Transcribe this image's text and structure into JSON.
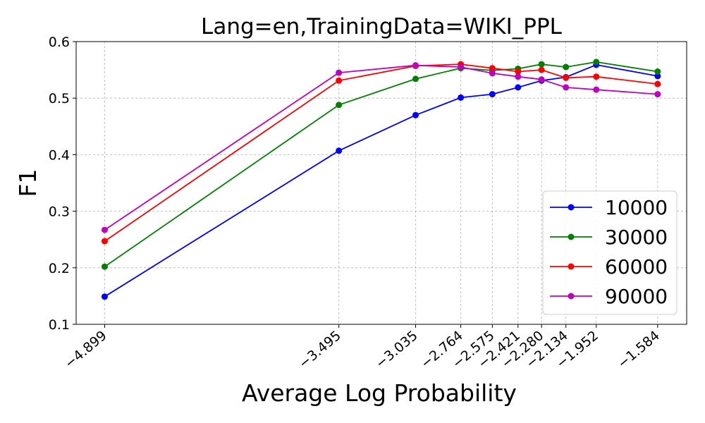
{
  "chart_data": {
    "type": "line",
    "title": "Lang=en,TrainingData=WIKI_PPL",
    "xlabel": "Average Log Probability",
    "ylabel": "F1",
    "x": [
      -4.899,
      -3.495,
      -3.035,
      -2.764,
      -2.575,
      -2.421,
      -2.28,
      -2.134,
      -1.952,
      -1.584
    ],
    "x_tick_labels": [
      "−4.899",
      "−3.495",
      "−3.035",
      "−2.764",
      "−2.575",
      "−2.421",
      "−2.280",
      "−2.134",
      "−1.952",
      "−1.584"
    ],
    "y_ticks": [
      0.1,
      0.2,
      0.3,
      0.4,
      0.5,
      0.6
    ],
    "y_tick_labels": [
      "0.1",
      "0.2",
      "0.3",
      "0.4",
      "0.5",
      "0.6"
    ],
    "xlim": [
      -5.07,
      -1.41
    ],
    "ylim": [
      0.1,
      0.6
    ],
    "grid": true,
    "legend_position": "lower right",
    "series": [
      {
        "name": "10000",
        "color": "#0000ff",
        "values": [
          0.149,
          0.407,
          0.47,
          0.501,
          0.507,
          0.519,
          0.531,
          0.537,
          0.559,
          0.539
        ]
      },
      {
        "name": "30000",
        "color": "#008000",
        "values": [
          0.202,
          0.488,
          0.534,
          0.553,
          0.549,
          0.552,
          0.56,
          0.555,
          0.564,
          0.547
        ]
      },
      {
        "name": "60000",
        "color": "#ff0000",
        "values": [
          0.247,
          0.531,
          0.557,
          0.56,
          0.553,
          0.547,
          0.55,
          0.536,
          0.538,
          0.525
        ]
      },
      {
        "name": "90000",
        "color": "#bf00bf",
        "values": [
          0.267,
          0.545,
          0.558,
          0.555,
          0.544,
          0.538,
          0.533,
          0.519,
          0.515,
          0.507
        ]
      }
    ]
  }
}
